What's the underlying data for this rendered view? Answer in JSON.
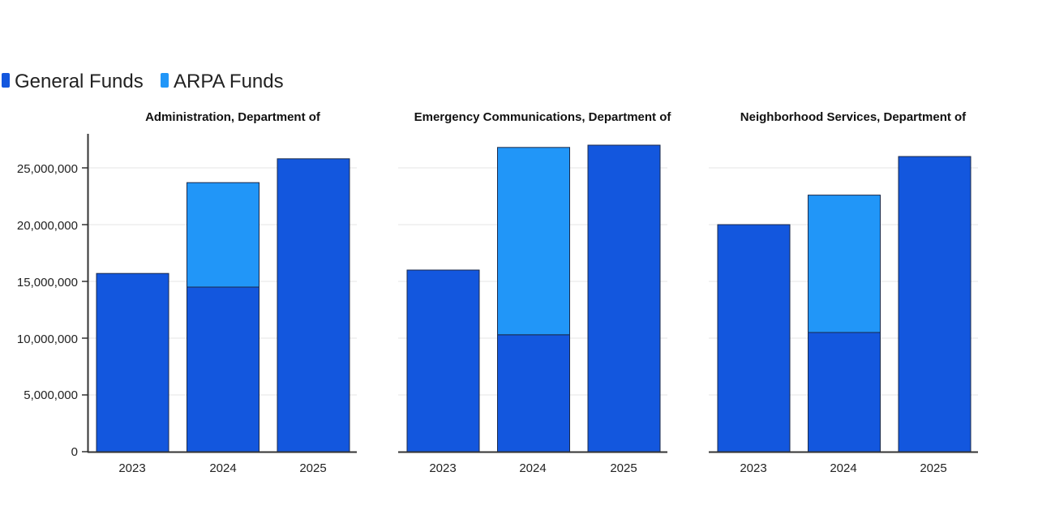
{
  "legend": [
    {
      "label": "General Funds",
      "color": "#1357DE"
    },
    {
      "label": "ARPA Funds",
      "color": "#2196F8"
    }
  ],
  "chart_data": {
    "type": "bar",
    "stacked": true,
    "ylim": [
      0,
      28000000
    ],
    "yticks": [
      0,
      5000000,
      10000000,
      15000000,
      20000000,
      25000000
    ],
    "ytick_labels": [
      "0",
      "5,000,000",
      "10,000,000",
      "15,000,000",
      "20,000,000",
      "25,000,000"
    ],
    "grid": true,
    "legend_position": "top-left",
    "panels": [
      {
        "title": "Administration, Department of",
        "categories": [
          "2023",
          "2024",
          "2025"
        ],
        "series": [
          {
            "name": "General Funds",
            "values": [
              15700000,
              14500000,
              25800000
            ]
          },
          {
            "name": "ARPA Funds",
            "values": [
              0,
              9200000,
              0
            ]
          }
        ]
      },
      {
        "title": "Emergency Communications, Department of",
        "categories": [
          "2023",
          "2024",
          "2025"
        ],
        "series": [
          {
            "name": "General Funds",
            "values": [
              16000000,
              10300000,
              27000000
            ]
          },
          {
            "name": "ARPA Funds",
            "values": [
              0,
              16500000,
              0
            ]
          }
        ]
      },
      {
        "title": "Neighborhood Services, Department of",
        "categories": [
          "2023",
          "2024",
          "2025"
        ],
        "series": [
          {
            "name": "General Funds",
            "values": [
              20000000,
              10500000,
              26000000
            ]
          },
          {
            "name": "ARPA Funds",
            "values": [
              0,
              12100000,
              0
            ]
          }
        ]
      }
    ]
  }
}
